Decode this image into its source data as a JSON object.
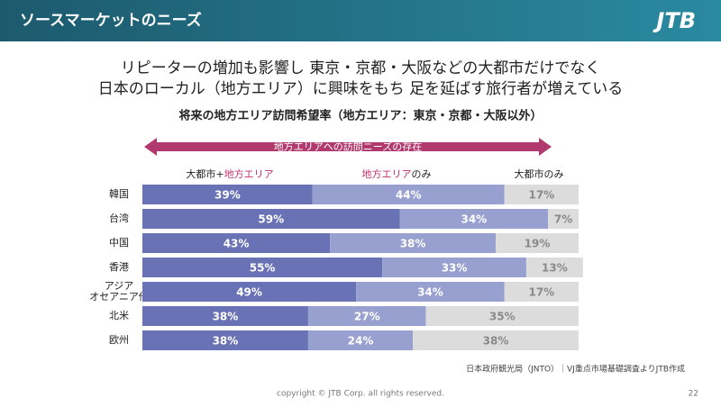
{
  "header": {
    "title": "ソースマーケットのニーズ",
    "logo": "JTB"
  },
  "headline": [
    "リピーターの増加も影響し 東京・京都・大阪などの大都市だけでなく",
    "日本のローカル（地方エリア）に興味をもち 足を延ばす旅行者が増えている"
  ],
  "chart_data": {
    "type": "stacked-bar-horizontal",
    "title": "将来の地方エリア訪問希望率（地方エリア：東京・京都・大阪以外）",
    "annotation": "地方エリアへの訪問ニーズの存在",
    "column_headers": [
      [
        {
          "text": "大都市+",
          "color": "#222222"
        },
        {
          "text": "地方エリア",
          "color": "#c0306a"
        }
      ],
      [
        {
          "text": "地方エリア",
          "color": "#c0306a"
        },
        {
          "text": "のみ",
          "color": "#222222"
        }
      ],
      [
        {
          "text": "大都市のみ",
          "color": "#222222"
        }
      ]
    ],
    "categories": [
      "韓国",
      "台湾",
      "中国",
      "香港",
      [
        "アジア",
        "オセアニア他"
      ],
      "北米",
      "欧州"
    ],
    "xlim": [
      0,
      100
    ],
    "series": [
      {
        "color": "#6872b4",
        "label_color": "#ffffff",
        "values": [
          39,
          59,
          43,
          55,
          49,
          38,
          38
        ],
        "value_labels": [
          "39%",
          "59%",
          "43%",
          "55%",
          "49%",
          "38%",
          "38%"
        ]
      },
      {
        "color": "#98a0d0",
        "label_color": "#ffffff",
        "values": [
          44,
          34,
          38,
          33,
          34,
          27,
          24
        ],
        "value_labels": [
          "44%",
          "34%",
          "38%",
          "33%",
          "34%",
          "27%",
          "24%"
        ]
      },
      {
        "color": "#dcdcdc",
        "label_color": "#8a8a8a",
        "values": [
          17,
          7,
          19,
          13,
          17,
          35,
          38
        ],
        "value_labels": [
          "17%",
          "7%",
          "19%",
          "13%",
          "17%",
          "35%",
          "38%"
        ]
      }
    ]
  },
  "footer": {
    "source": "日本政府観光局（JNTO）｜VJ重点市場基礎調査よりJTB作成",
    "copyright": "copyright © JTB Corp. all rights reserved.",
    "page": "22"
  }
}
